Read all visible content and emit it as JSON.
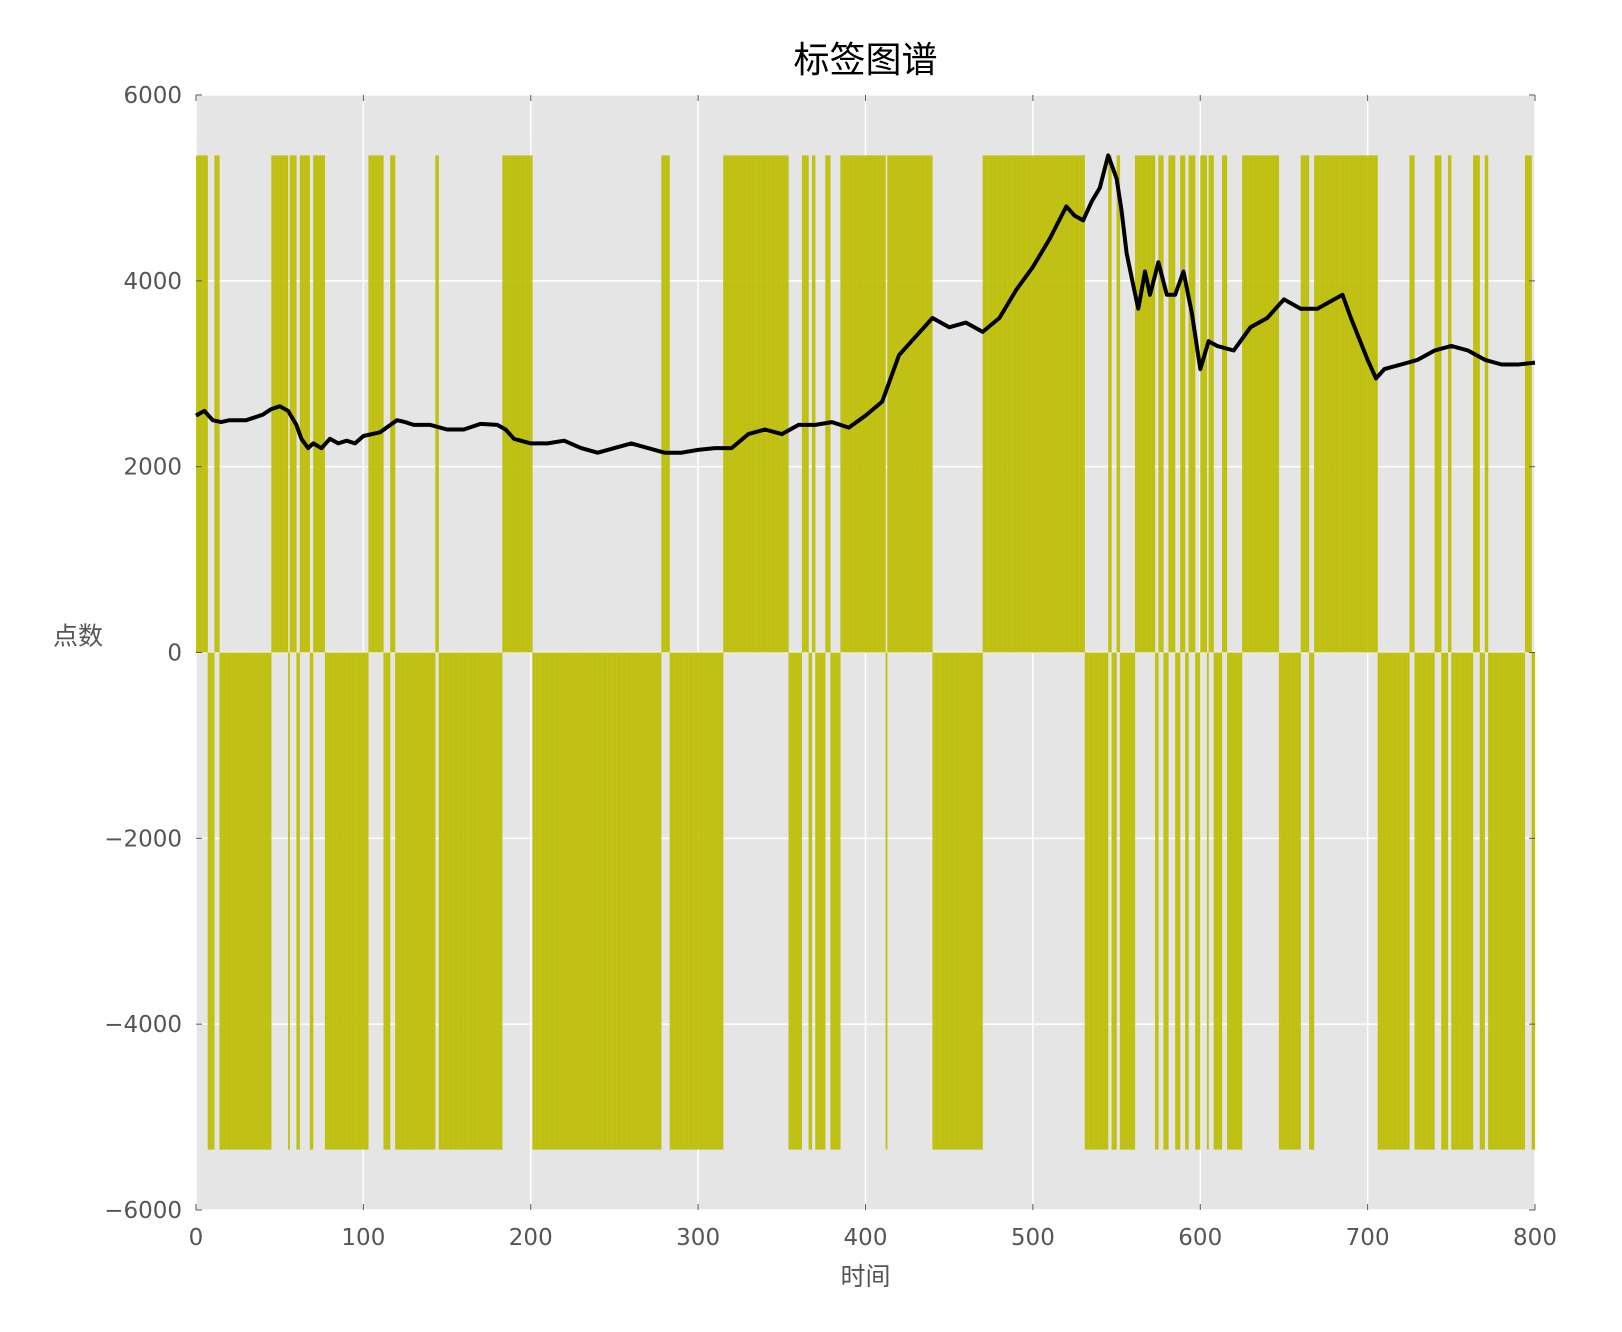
{
  "chart_data": {
    "type": "bar",
    "title": "标签图谱",
    "xlabel": "时间",
    "ylabel": "点数",
    "xlim": [
      0,
      800
    ],
    "ylim": [
      -6000,
      6000
    ],
    "x_ticks": [
      0,
      100,
      200,
      300,
      400,
      500,
      600,
      700,
      800
    ],
    "y_ticks": [
      -6000,
      -4000,
      -2000,
      0,
      2000,
      4000,
      6000
    ],
    "y_tick_labels": [
      "−6000",
      "−4000",
      "−2000",
      "0",
      "2000",
      "4000",
      "6000"
    ],
    "grid": true,
    "legend": "none",
    "colors": {
      "bars": "#bdbd00",
      "line": "#000000",
      "plot_bg": "#e5e5e5",
      "grid": "#ffffff"
    },
    "bar_amplitude": 5350,
    "positive_intervals": [
      [
        0,
        7
      ],
      [
        11,
        14
      ],
      [
        45,
        55
      ],
      [
        56,
        60
      ],
      [
        62,
        68
      ],
      [
        70,
        77
      ],
      [
        103,
        112
      ],
      [
        116,
        119
      ],
      [
        143,
        145
      ],
      [
        183,
        201
      ],
      [
        278,
        283
      ],
      [
        315,
        354
      ],
      [
        362,
        366
      ],
      [
        368,
        370
      ],
      [
        376,
        379
      ],
      [
        385,
        412
      ],
      [
        413,
        440
      ],
      [
        470,
        531
      ],
      [
        545,
        547
      ],
      [
        550,
        552
      ],
      [
        561,
        573
      ],
      [
        575,
        578
      ],
      [
        581,
        585
      ],
      [
        588,
        591
      ],
      [
        593,
        597
      ],
      [
        600,
        604
      ],
      [
        605,
        608
      ],
      [
        613,
        616
      ],
      [
        625,
        647
      ],
      [
        660,
        665
      ],
      [
        668,
        706
      ],
      [
        725,
        728
      ],
      [
        740,
        744
      ],
      [
        748,
        750
      ],
      [
        763,
        767
      ],
      [
        770,
        772
      ],
      [
        794,
        798
      ]
    ],
    "series": [
      {
        "name": "",
        "type": "line",
        "x": [
          0,
          5,
          10,
          15,
          20,
          30,
          40,
          45,
          50,
          55,
          60,
          63,
          67,
          70,
          75,
          80,
          85,
          90,
          95,
          100,
          110,
          120,
          125,
          130,
          140,
          150,
          160,
          170,
          180,
          185,
          190,
          200,
          210,
          220,
          230,
          240,
          250,
          260,
          270,
          280,
          290,
          300,
          310,
          320,
          330,
          340,
          350,
          360,
          370,
          380,
          390,
          400,
          410,
          420,
          430,
          440,
          450,
          460,
          470,
          480,
          490,
          500,
          510,
          520,
          525,
          530,
          535,
          540,
          545,
          550,
          553,
          556,
          560,
          563,
          567,
          570,
          575,
          580,
          585,
          590,
          595,
          600,
          605,
          610,
          620,
          630,
          640,
          650,
          660,
          670,
          680,
          685,
          690,
          700,
          705,
          710,
          720,
          730,
          740,
          750,
          760,
          770,
          780,
          790,
          800
        ],
        "y": [
          2550,
          2600,
          2500,
          2480,
          2500,
          2500,
          2560,
          2620,
          2650,
          2600,
          2450,
          2300,
          2200,
          2250,
          2200,
          2300,
          2250,
          2280,
          2250,
          2330,
          2370,
          2500,
          2480,
          2450,
          2450,
          2400,
          2400,
          2460,
          2450,
          2400,
          2300,
          2250,
          2250,
          2280,
          2200,
          2150,
          2200,
          2250,
          2200,
          2150,
          2150,
          2180,
          2200,
          2200,
          2350,
          2400,
          2350,
          2450,
          2450,
          2480,
          2420,
          2550,
          2700,
          3200,
          3400,
          3600,
          3500,
          3550,
          3450,
          3600,
          3900,
          4150,
          4450,
          4800,
          4700,
          4650,
          4850,
          5000,
          5350,
          5100,
          4750,
          4300,
          3950,
          3700,
          4100,
          3850,
          4200,
          3850,
          3850,
          4100,
          3650,
          3050,
          3350,
          3300,
          3250,
          3500,
          3600,
          3800,
          3700,
          3700,
          3800,
          3850,
          3600,
          3150,
          2950,
          3050,
          3100,
          3150,
          3250,
          3300,
          3250,
          3150,
          3100,
          3100,
          3120
        ]
      }
    ]
  }
}
